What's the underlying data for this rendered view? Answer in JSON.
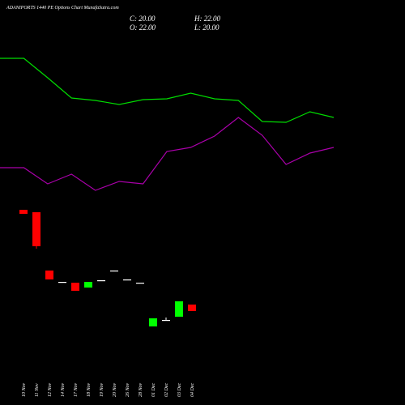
{
  "chart_data": {
    "type": "candlestick",
    "title": "ADANIPORTS 1440 PE Options Chart MunafaSutra.com",
    "ohlc_labels": [
      "C: 20.00",
      "H: 22.00",
      "O: 22.00",
      "L: 20.00"
    ],
    "categories": [
      "10 Nov",
      "11 Nov",
      "12 Nov",
      "14 Nov",
      "17 Nov",
      "18 Nov",
      "19 Nov",
      "20 Nov",
      "26 Nov",
      "28 Nov",
      "01 Dec",
      "02 Dec",
      "03 Dec",
      "04 Dec"
    ],
    "open": [
      51.25,
      50.5,
      32.5,
      29,
      28.75,
      27.25,
      29.5,
      32.5,
      29.75,
      28.75,
      15.25,
      17.25,
      18.25,
      22
    ],
    "high": [
      51.25,
      50.5,
      32.5,
      29,
      28.75,
      29,
      29.5,
      32.5,
      29.75,
      28.75,
      17.75,
      18,
      23,
      22
    ],
    "low": [
      50,
      39.25,
      29.75,
      29,
      26.25,
      27.25,
      29.5,
      32.5,
      29.75,
      28.75,
      15.25,
      17,
      18.25,
      20
    ],
    "close": [
      50,
      40,
      29.75,
      29,
      26.25,
      29,
      29.5,
      32.5,
      29.75,
      28.75,
      17.75,
      17.25,
      23,
      20
    ],
    "up_color": "#00ff00",
    "down_color": "#ff0000",
    "lines": {
      "x": [
        0,
        1,
        2,
        3,
        4,
        5,
        6,
        7,
        8,
        9,
        10,
        11,
        12,
        13,
        14
      ],
      "series": [
        {
          "color": "#00dd00",
          "values": [
            98,
            98,
            92,
            85.75,
            85,
            83.75,
            85.25,
            85.5,
            87.25,
            85.5,
            85,
            78.5,
            78.25,
            81.5,
            79.75
          ]
        },
        {
          "color": "#aa00aa",
          "values": [
            64.25,
            64.25,
            59.25,
            62.25,
            57.25,
            60,
            59.25,
            69.25,
            70.5,
            74,
            79.75,
            74.25,
            65.25,
            68.75,
            70.5
          ]
        }
      ]
    },
    "ylim": [
      -9,
      116
    ]
  }
}
